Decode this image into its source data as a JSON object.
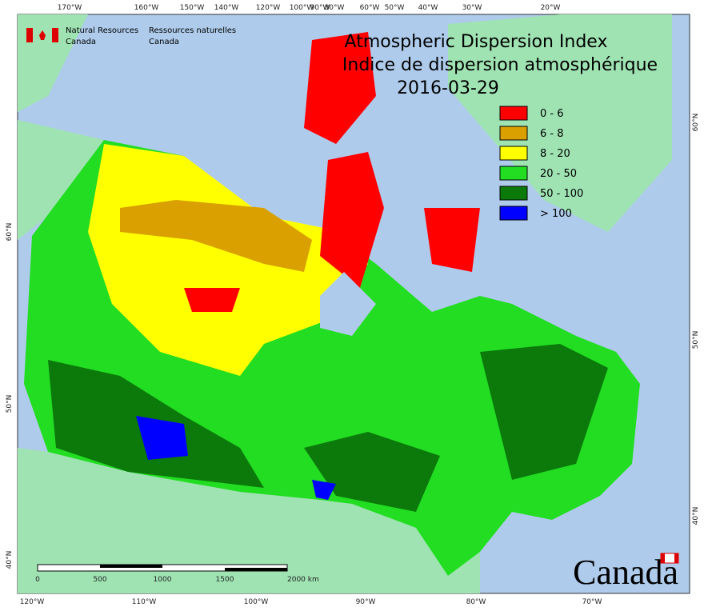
{
  "header": {
    "agency_en": [
      "Natural Resources",
      "Canada"
    ],
    "agency_fr": [
      "Ressources naturelles",
      "Canada"
    ]
  },
  "title": {
    "line1": "Atmospheric Dispersion Index",
    "line2": "Indice de dispersion atmosphérique",
    "date": "2016-03-29"
  },
  "legend": [
    {
      "label": "0 - 6",
      "color": "#ff0000"
    },
    {
      "label": "6 - 8",
      "color": "#d9a000"
    },
    {
      "label": "8 - 20",
      "color": "#ffff00"
    },
    {
      "label": "20 - 50",
      "color": "#22dd22"
    },
    {
      "label": "50 - 100",
      "color": "#0b7a0b"
    },
    {
      "label": "> 100",
      "color": "#0000ff"
    }
  ],
  "graticule": {
    "top": [
      "170°W",
      "160°W",
      "150°W",
      "140°W",
      "120°W",
      "100°W",
      "90°W",
      "80°W",
      "60°W",
      "50°W",
      "40°W",
      "30°W",
      "20°W"
    ],
    "bottom": [
      "120°W",
      "110°W",
      "100°W",
      "90°W",
      "80°W",
      "70°W"
    ],
    "left": [
      "60°N",
      "50°N",
      "40°N"
    ],
    "right": [
      "60°N",
      "50°N",
      "40°N"
    ]
  },
  "scale_bar": [
    "0",
    "500",
    "1000",
    "1500",
    "2000 km"
  ],
  "wordmark": "Canada"
}
